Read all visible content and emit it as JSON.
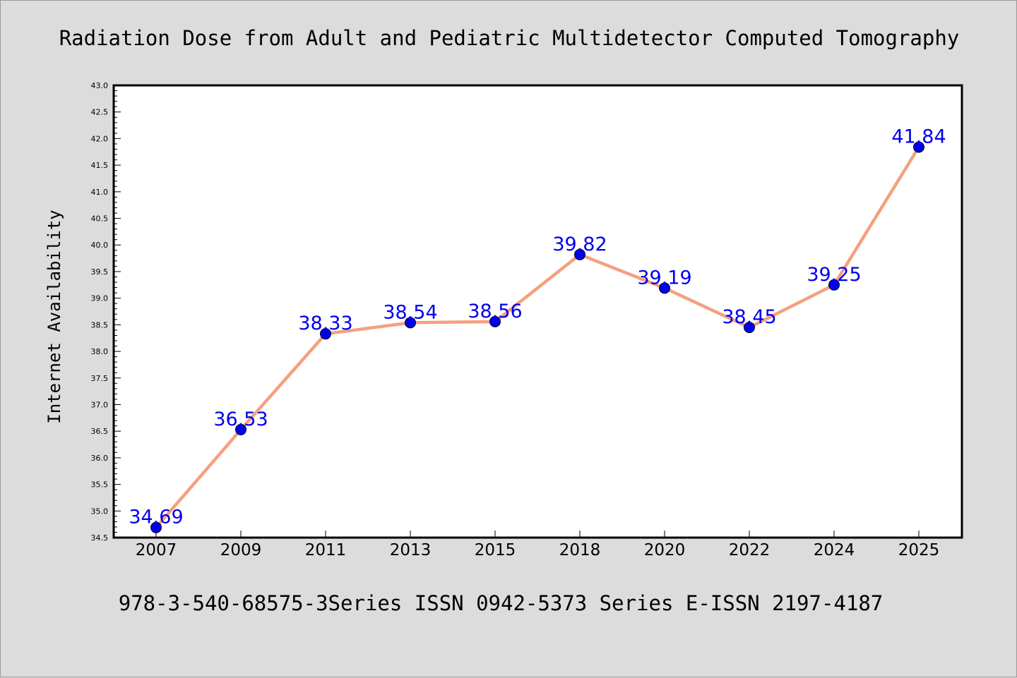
{
  "chart_data": {
    "type": "line",
    "title": "Radiation Dose from Adult and Pediatric Multidetector Computed Tomography",
    "ylabel": "Internet Availability",
    "xlabel": "",
    "footer": "978-3-540-68575-3Series ISSN 0942-5373 Series E-ISSN 2197-4187",
    "categories": [
      "2007",
      "2009",
      "2011",
      "2013",
      "2015",
      "2018",
      "2020",
      "2022",
      "2024",
      "2025"
    ],
    "values": [
      34.69,
      36.53,
      38.33,
      38.54,
      38.56,
      39.82,
      39.19,
      38.45,
      39.25,
      41.84
    ],
    "value_labels": [
      "34.69",
      "36.53",
      "38.33",
      "38.54",
      "38.56",
      "39.82",
      "39.19",
      "38.45",
      "39.25",
      "41.84"
    ],
    "ylim": [
      34.5,
      43.0
    ],
    "yticks": [
      "34.5",
      "35.0",
      "35.5",
      "36.0",
      "36.5",
      "37.0",
      "37.5",
      "38.0",
      "38.5",
      "39.0",
      "39.5",
      "40.0",
      "40.5",
      "41.0",
      "41.5",
      "42.0",
      "42.5",
      "43.0"
    ],
    "grid": false,
    "colors": {
      "line": "#f4a07e",
      "marker": "#0000ee",
      "label": "#0000ee",
      "background": "#dcdcdc",
      "plot_background": "#ffffff"
    }
  }
}
